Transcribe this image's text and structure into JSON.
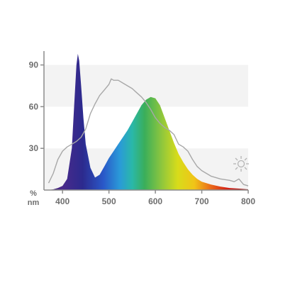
{
  "chart_data": {
    "type": "area",
    "x_unit": "nm",
    "y_unit": "%",
    "xlim": [
      360,
      800
    ],
    "ylim": [
      0,
      100
    ],
    "x_ticks": [
      "400",
      "500",
      "600",
      "700",
      "800"
    ],
    "x_tick_values": [
      400,
      500,
      600,
      700,
      800
    ],
    "y_ticks": [
      "90",
      "60",
      "30"
    ],
    "y_tick_values": [
      90,
      60,
      30
    ],
    "y_bands": [
      [
        0,
        30
      ],
      [
        60,
        90
      ]
    ],
    "band_color": "#f3f3f3",
    "axis_color": "#8c8c8c",
    "series": [
      {
        "kind": "filled-spectrum",
        "x": [
          370,
          380,
          390,
          400,
          410,
          420,
          425,
          430,
          433,
          436,
          440,
          445,
          450,
          460,
          470,
          480,
          490,
          500,
          510,
          520,
          530,
          540,
          550,
          560,
          570,
          580,
          590,
          600,
          610,
          620,
          630,
          640,
          650,
          660,
          670,
          680,
          690,
          700,
          720,
          740,
          760,
          780,
          800
        ],
        "values": [
          0,
          0.5,
          1.5,
          3,
          8,
          30,
          60,
          90,
          98,
          93,
          75,
          52,
          33,
          16,
          9,
          11,
          17,
          23,
          28,
          33,
          38,
          43,
          49,
          55,
          61,
          65,
          67,
          66,
          61,
          52,
          43,
          34,
          26,
          20,
          15,
          11,
          8,
          6,
          4,
          2.5,
          1.5,
          1,
          0.5
        ]
      },
      {
        "kind": "reference-line",
        "color": "#a8a8a8",
        "x": [
          370,
          380,
          390,
          400,
          410,
          420,
          430,
          440,
          450,
          460,
          470,
          480,
          490,
          500,
          505,
          510,
          520,
          530,
          540,
          550,
          560,
          570,
          580,
          590,
          600,
          610,
          620,
          630,
          640,
          650,
          660,
          670,
          680,
          690,
          700,
          720,
          740,
          760,
          770,
          780,
          790,
          800
        ],
        "values": [
          5,
          12,
          22,
          28,
          31,
          33,
          35,
          38,
          44,
          55,
          62,
          68,
          72,
          76,
          80,
          79,
          79,
          77,
          75,
          73,
          70,
          67,
          63,
          58,
          52,
          48,
          45,
          43,
          40,
          33,
          31,
          28,
          22,
          17,
          14,
          10,
          8,
          7,
          6,
          8,
          4,
          3
        ]
      }
    ]
  },
  "icons": {
    "daylight": "sun-outline-icon"
  }
}
